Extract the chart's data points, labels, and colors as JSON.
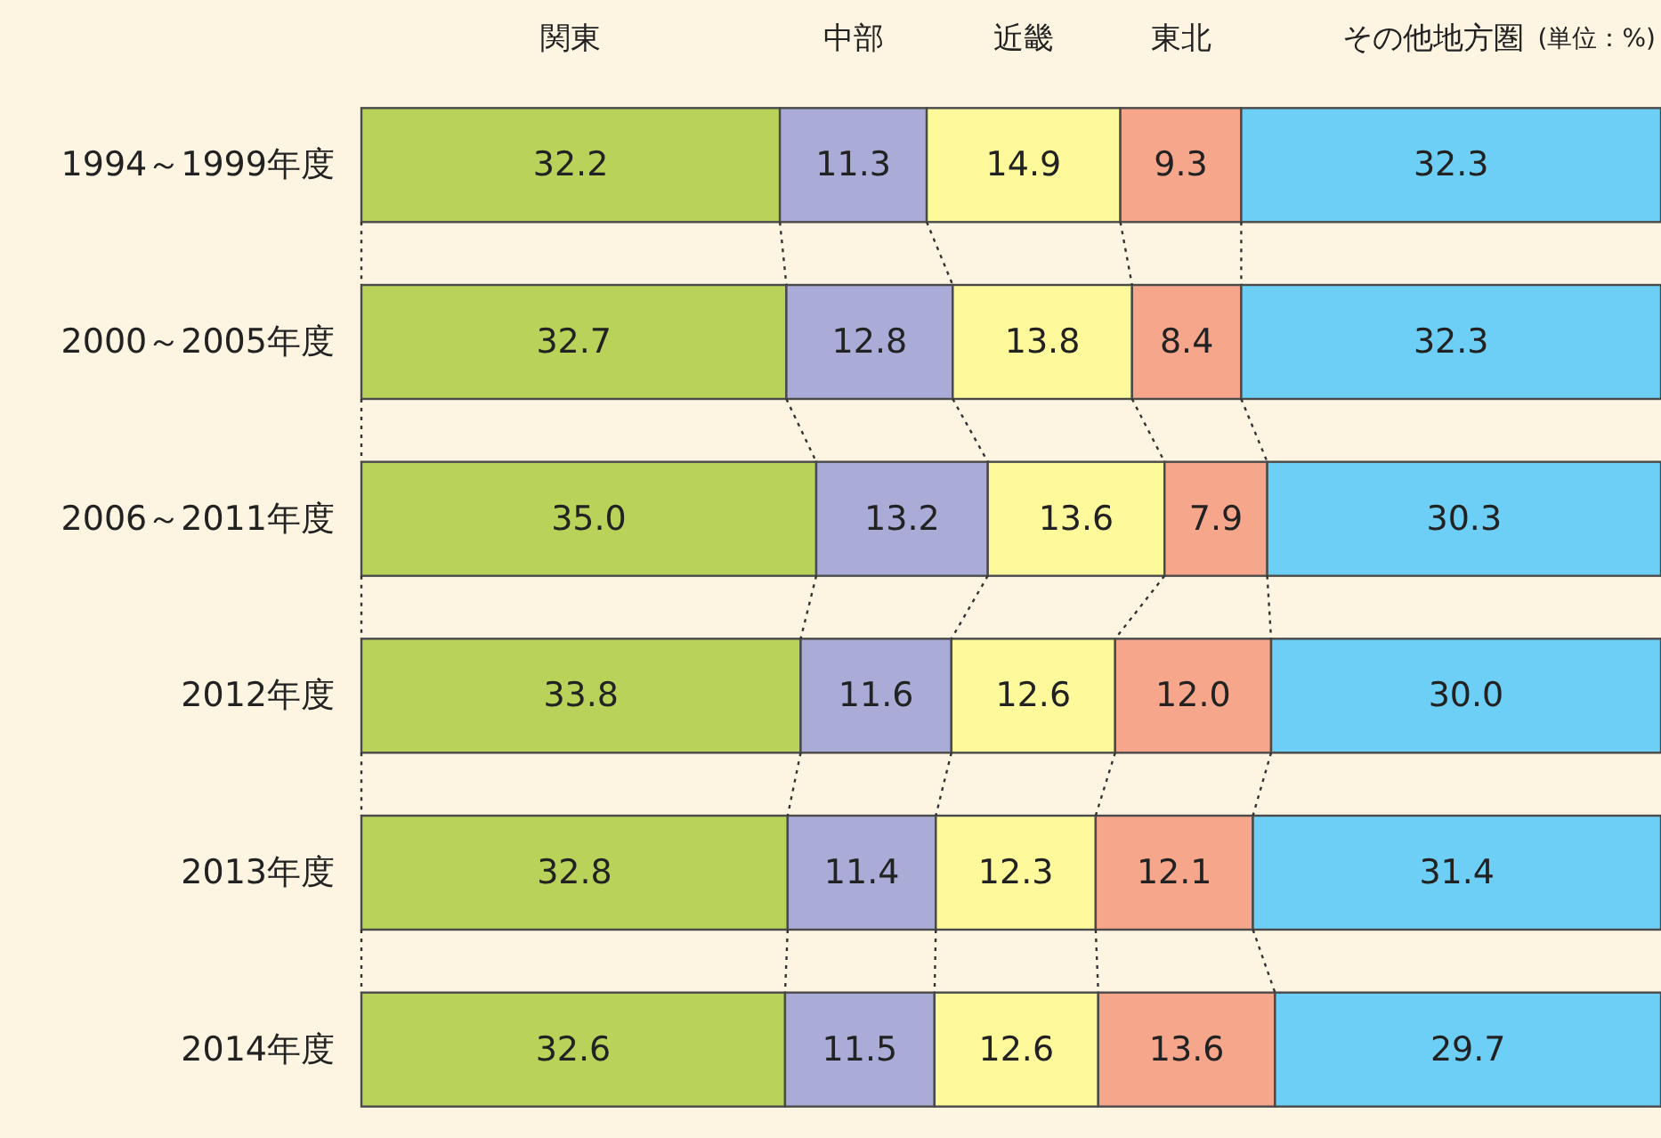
{
  "chart_data": {
    "type": "bar",
    "orientation": "horizontal",
    "stacked": true,
    "legend": "top",
    "categories": [
      "1994～1999年度",
      "2000～2005年度",
      "2006～2011年度",
      "2012年度",
      "2013年度",
      "2014年度"
    ],
    "series": [
      {
        "name": "関東",
        "color": "#b9d35a",
        "values": [
          32.2,
          32.7,
          35.0,
          33.8,
          32.8,
          32.6
        ],
        "value_labels": [
          "32.2",
          "32.7",
          "35.0",
          "33.8",
          "32.8",
          "32.6"
        ]
      },
      {
        "name": "中部",
        "color": "#aaacd7",
        "values": [
          11.3,
          12.8,
          13.2,
          11.6,
          11.4,
          11.5
        ],
        "value_labels": [
          "11.3",
          "12.8",
          "13.2",
          "11.6",
          "11.4",
          "11.5"
        ]
      },
      {
        "name": "近畿",
        "color": "#fef99b",
        "values": [
          14.9,
          13.8,
          13.6,
          12.6,
          12.3,
          12.6
        ],
        "value_labels": [
          "14.9",
          "13.8",
          "13.6",
          "12.6",
          "12.3",
          "12.6"
        ]
      },
      {
        "name": "東北",
        "color": "#f6a68b",
        "values": [
          9.3,
          8.4,
          7.9,
          12.0,
          12.1,
          13.6
        ],
        "value_labels": [
          "9.3",
          "8.4",
          "7.9",
          "12.0",
          "12.1",
          "13.6"
        ]
      },
      {
        "name": "その他地方圏",
        "color": "#6dcff6",
        "values": [
          32.3,
          32.3,
          30.3,
          30.0,
          31.4,
          29.7
        ],
        "value_labels": [
          "32.3",
          "32.3",
          "30.3",
          "30.0",
          "31.4",
          "29.7"
        ]
      }
    ],
    "annotations": [
      "(単位：%)"
    ]
  }
}
